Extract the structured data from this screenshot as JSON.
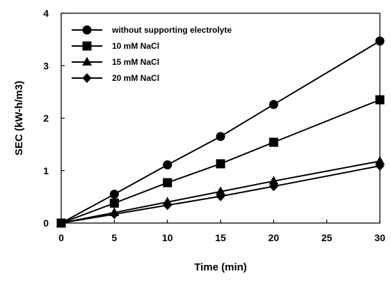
{
  "chart_data": {
    "type": "line",
    "title": "",
    "xlabel": "Time (min)",
    "ylabel": "SEC (kW-h/m3)",
    "x": [
      0,
      5,
      10,
      15,
      20,
      30
    ],
    "xlim": [
      0,
      30
    ],
    "ylim": [
      0,
      4
    ],
    "xticks": [
      "0",
      "5",
      "10",
      "15",
      "20",
      "25",
      "30"
    ],
    "yticks": [
      "0",
      "1",
      "2",
      "3",
      "4"
    ],
    "grid": false,
    "legend_position": "top-left",
    "line_color": "#000000",
    "series": [
      {
        "name": "without supporting electrolyte",
        "marker": "circle",
        "values": [
          0.0,
          0.55,
          1.11,
          1.65,
          2.26,
          3.47
        ]
      },
      {
        "name": "10 mM NaCl",
        "marker": "square",
        "values": [
          0.0,
          0.38,
          0.77,
          1.13,
          1.54,
          2.35
        ]
      },
      {
        "name": "15 mM NaCl",
        "marker": "triangle",
        "values": [
          0.0,
          0.2,
          0.4,
          0.6,
          0.8,
          1.18
        ]
      },
      {
        "name": "20 mM NaCl",
        "marker": "diamond",
        "values": [
          0.0,
          0.17,
          0.34,
          0.51,
          0.7,
          1.09
        ]
      }
    ]
  }
}
